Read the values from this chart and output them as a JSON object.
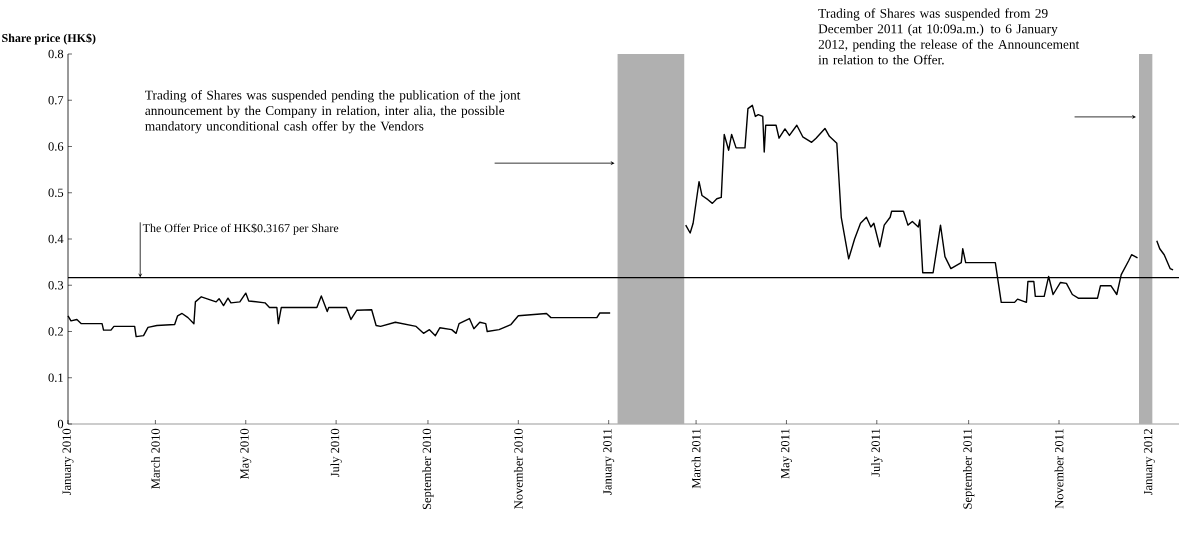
{
  "chart_data": {
    "type": "line",
    "ylabel": "Share price (HK$)",
    "xlim": [
      "2010-01-01",
      "2012-01-21"
    ],
    "ylim": [
      0,
      0.8
    ],
    "yticks": [
      0,
      0.1,
      0.2,
      0.3,
      0.4,
      0.5,
      0.6,
      0.7,
      0.8
    ],
    "xticks": [
      {
        "value": "2010-01-01",
        "label": "January 2010"
      },
      {
        "value": "2010-03-01",
        "label": "March 2010"
      },
      {
        "value": "2010-05-01",
        "label": "May 2010"
      },
      {
        "value": "2010-07-01",
        "label": "July 2010"
      },
      {
        "value": "2010-09-01",
        "label": "September 2010"
      },
      {
        "value": "2010-11-01",
        "label": "November 2010"
      },
      {
        "value": "2011-01-01",
        "label": "January 2011"
      },
      {
        "value": "2011-03-01",
        "label": "March 2011"
      },
      {
        "value": "2011-05-01",
        "label": "May 2011"
      },
      {
        "value": "2011-07-01",
        "label": "July 2011"
      },
      {
        "value": "2011-09-01",
        "label": "September 2011"
      },
      {
        "value": "2011-11-01",
        "label": "November 2011"
      },
      {
        "value": "2012-01-01",
        "label": "January 2012"
      }
    ],
    "x": [
      "2010-01-01",
      "2010-01-03",
      "2010-01-07",
      "2010-01-10",
      "2010-01-24",
      "2010-01-25",
      "2010-01-30",
      "2010-02-01",
      "2010-02-15",
      "2010-02-16",
      "2010-02-21",
      "2010-02-24",
      "2010-03-02",
      "2010-03-14",
      "2010-03-16",
      "2010-03-19",
      "2010-03-23",
      "2010-03-27",
      "2010-03-28",
      "2010-04-01",
      "2010-04-11",
      "2010-04-13",
      "2010-04-16",
      "2010-04-19",
      "2010-04-21",
      "2010-04-27",
      "2010-05-01",
      "2010-05-03",
      "2010-05-14",
      "2010-05-17",
      "2010-05-22",
      "2010-05-23",
      "2010-05-25",
      "2010-06-18",
      "2010-06-21",
      "2010-06-25",
      "2010-06-26",
      "2010-07-08",
      "2010-07-11",
      "2010-07-15",
      "2010-07-25",
      "2010-07-28",
      "2010-07-31",
      "2010-08-10",
      "2010-08-24",
      "2010-08-29",
      "2010-09-02",
      "2010-09-06",
      "2010-09-09",
      "2010-09-17",
      "2010-09-20",
      "2010-09-22",
      "2010-09-29",
      "2010-10-02",
      "2010-10-06",
      "2010-10-10",
      "2010-10-11",
      "2010-10-19",
      "2010-10-27",
      "2010-11-01",
      "2010-11-20",
      "2010-11-23",
      "2010-12-24",
      "2010-12-26",
      "2011-01-02",
      "2011-01-20",
      "2011-02-22",
      "2011-02-25",
      "2011-02-27",
      "2011-03-03",
      "2011-03-05",
      "2011-03-09",
      "2011-03-12",
      "2011-03-15",
      "2011-03-18",
      "2011-03-20",
      "2011-03-23",
      "2011-03-25",
      "2011-03-28",
      "2011-04-03",
      "2011-04-05",
      "2011-04-08",
      "2011-04-10",
      "2011-04-12",
      "2011-04-15",
      "2011-04-16",
      "2011-04-17",
      "2011-04-24",
      "2011-04-26",
      "2011-04-30",
      "2011-05-03",
      "2011-05-08",
      "2011-05-12",
      "2011-05-18",
      "2011-05-21",
      "2011-05-27",
      "2011-05-30",
      "2011-06-04",
      "2011-06-07",
      "2011-06-12",
      "2011-06-16",
      "2011-06-20",
      "2011-06-24",
      "2011-06-27",
      "2011-06-29",
      "2011-07-03",
      "2011-07-06",
      "2011-07-10",
      "2011-07-11",
      "2011-07-19",
      "2011-07-22",
      "2011-07-25",
      "2011-07-29",
      "2011-07-30",
      "2011-08-01",
      "2011-08-08",
      "2011-08-13",
      "2011-08-16",
      "2011-08-20",
      "2011-08-27",
      "2011-08-28",
      "2011-08-30",
      "2011-09-19",
      "2011-09-23",
      "2011-10-02",
      "2011-10-04",
      "2011-10-10",
      "2011-10-11",
      "2011-10-15",
      "2011-10-16",
      "2011-10-22",
      "2011-10-25",
      "2011-10-28",
      "2011-11-02",
      "2011-11-06",
      "2011-11-10",
      "2011-11-14",
      "2011-11-27",
      "2011-11-29",
      "2011-12-06",
      "2011-12-10",
      "2011-12-13",
      "2011-12-18",
      "2011-12-20",
      "2011-12-24",
      "2011-12-30",
      "2012-01-06",
      "2012-01-08",
      "2012-01-11",
      "2012-01-15",
      "2012-01-17"
    ],
    "series": [
      {
        "color": "#000000",
        "values": [
          0.234,
          0.223,
          0.226,
          0.217,
          0.217,
          0.203,
          0.203,
          0.211,
          0.211,
          0.189,
          0.191,
          0.209,
          0.213,
          0.215,
          0.234,
          0.239,
          0.23,
          0.217,
          0.264,
          0.275,
          0.264,
          0.271,
          0.256,
          0.272,
          0.262,
          0.264,
          0.283,
          0.266,
          0.262,
          0.252,
          0.252,
          0.217,
          0.252,
          0.252,
          0.277,
          0.243,
          0.252,
          0.252,
          0.226,
          0.246,
          0.247,
          0.213,
          0.211,
          0.22,
          0.211,
          0.196,
          0.204,
          0.191,
          0.208,
          0.204,
          0.196,
          0.217,
          0.228,
          0.206,
          0.22,
          0.217,
          0.2,
          0.204,
          0.215,
          0.234,
          0.239,
          0.23,
          0.23,
          0.24,
          0.24,
          null,
          0.43,
          0.413,
          0.434,
          0.524,
          0.494,
          0.485,
          0.477,
          0.487,
          0.49,
          0.626,
          0.592,
          0.626,
          0.597,
          0.597,
          0.682,
          0.689,
          0.665,
          0.669,
          0.665,
          0.588,
          0.646,
          0.646,
          0.618,
          0.638,
          0.624,
          0.646,
          0.621,
          0.609,
          0.618,
          0.639,
          0.622,
          0.607,
          0.447,
          0.357,
          0.4,
          0.434,
          0.447,
          0.426,
          0.434,
          0.383,
          0.43,
          0.447,
          0.46,
          0.46,
          0.43,
          0.438,
          0.426,
          0.441,
          0.327,
          0.327,
          0.43,
          0.362,
          0.336,
          0.349,
          0.379,
          0.349,
          0.349,
          0.263,
          0.263,
          0.27,
          0.263,
          0.308,
          0.308,
          0.276,
          0.276,
          0.319,
          0.28,
          0.306,
          0.304,
          0.28,
          0.272,
          0.272,
          0.299,
          0.299,
          0.28,
          0.323,
          0.353,
          0.366,
          0.359,
          null,
          0.396,
          0.379,
          0.366,
          0.336,
          0.333
        ]
      }
    ],
    "ref_lines": [
      {
        "axis": "y",
        "value": 0.3167,
        "label": "The Offer Price of HK$0.3167 per Share",
        "color": "#000000"
      }
    ],
    "bands": [
      {
        "axis": "x",
        "from": "2011-01-07",
        "to": "2011-02-21",
        "color": "#b0b0b0"
      },
      {
        "axis": "x",
        "from": "2011-12-25",
        "to": "2012-01-03",
        "color": "#b0b0b0"
      }
    ],
    "annotations": [
      "Trading of Shares was suspended pending the publication of the jont announcement by the Company in relation, inter alia, the possible mandatory unconditional cash offer by the Vendors",
      "Trading of Shares was suspended from 29 December 2011 (at 10:09a.m.) to 6 January 2012, pending the release of the Announcement in relation to the Offer."
    ]
  }
}
